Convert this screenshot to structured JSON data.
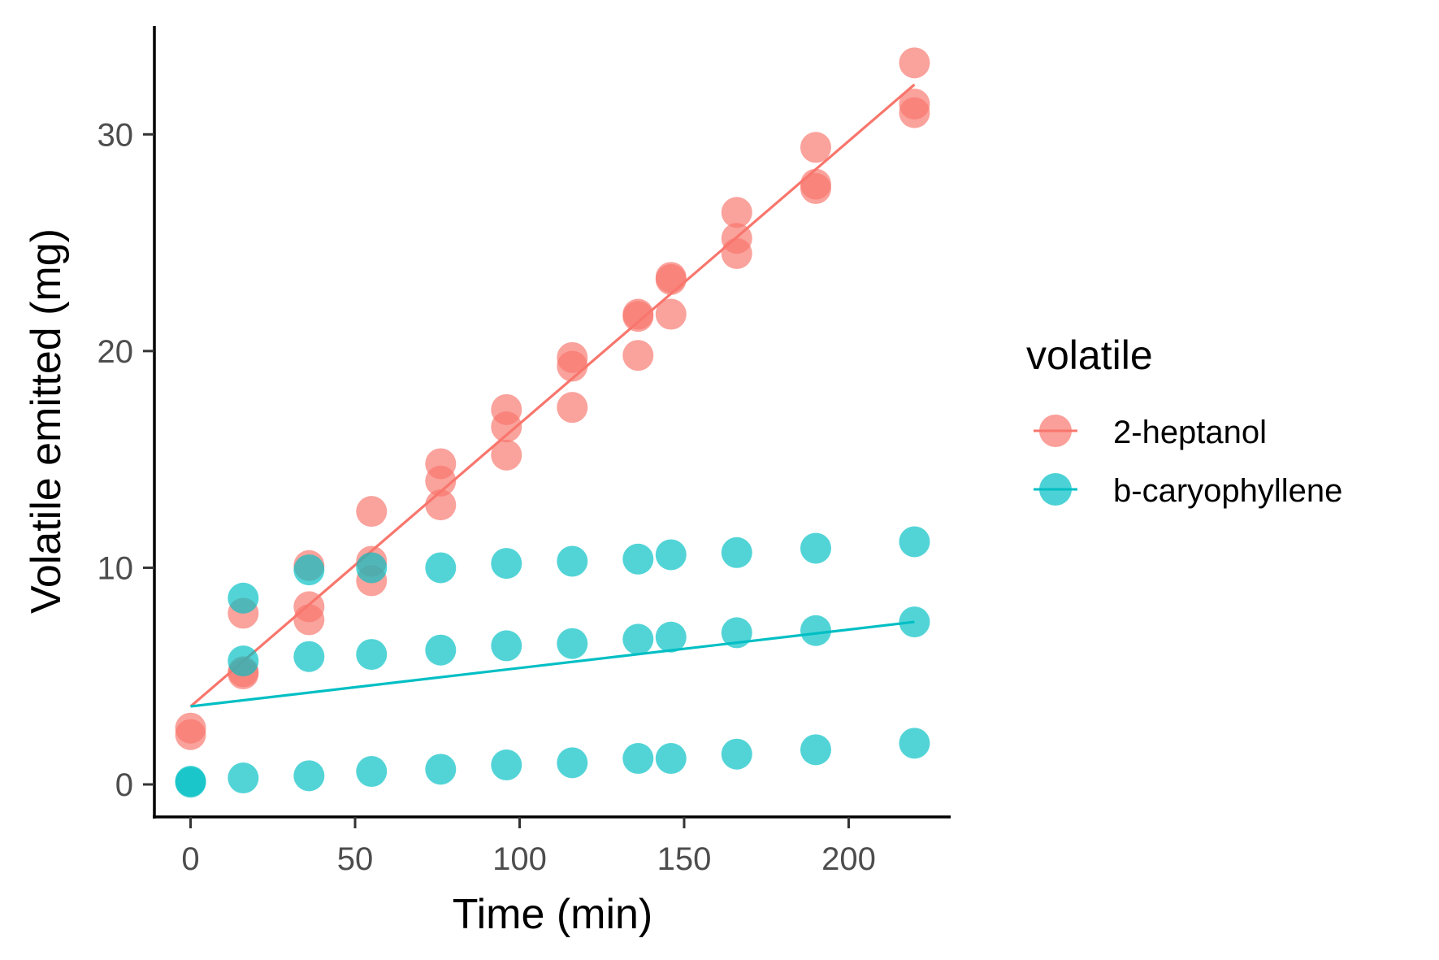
{
  "chart_data": {
    "type": "scatter",
    "xlabel": "Time (min)",
    "ylabel": "Volatile emitted (mg)",
    "xlim": [
      -11,
      231
    ],
    "ylim": [
      -1.5,
      35
    ],
    "xticks": [
      "0",
      "50",
      "100",
      "150",
      "200"
    ],
    "yticks": [
      "0",
      "10",
      "20",
      "30"
    ],
    "grid": false,
    "legend": {
      "title": "volatile",
      "placement": "right",
      "entries": [
        "2-heptanol",
        "b-caryophyllene"
      ]
    },
    "series": [
      {
        "name": "2-heptanol",
        "color": "#F8766D",
        "points": [
          [
            0,
            2.3
          ],
          [
            0,
            2.6
          ],
          [
            16,
            5.1
          ],
          [
            16,
            5.2
          ],
          [
            16,
            7.9
          ],
          [
            36,
            7.6
          ],
          [
            36,
            8.2
          ],
          [
            36,
            10.1
          ],
          [
            55,
            9.4
          ],
          [
            55,
            10.3
          ],
          [
            55,
            12.6
          ],
          [
            76,
            12.9
          ],
          [
            76,
            14.0
          ],
          [
            76,
            14.8
          ],
          [
            96,
            15.2
          ],
          [
            96,
            16.5
          ],
          [
            96,
            17.3
          ],
          [
            116,
            17.4
          ],
          [
            116,
            19.3
          ],
          [
            116,
            19.7
          ],
          [
            136,
            19.8
          ],
          [
            136,
            21.6
          ],
          [
            136,
            21.7
          ],
          [
            146,
            21.7
          ],
          [
            146,
            23.3
          ],
          [
            146,
            23.4
          ],
          [
            166,
            24.5
          ],
          [
            166,
            25.2
          ],
          [
            166,
            26.4
          ],
          [
            190,
            27.5
          ],
          [
            190,
            27.7
          ],
          [
            190,
            29.4
          ],
          [
            220,
            31.0
          ],
          [
            220,
            31.4
          ],
          [
            220,
            33.3
          ]
        ],
        "fit": [
          [
            0,
            3.6
          ],
          [
            220,
            32.3
          ]
        ]
      },
      {
        "name": "b-caryophyllene",
        "color": "#00BFC4",
        "points": [
          [
            0,
            0.1
          ],
          [
            0,
            0.15
          ],
          [
            16,
            0.3
          ],
          [
            16,
            5.7
          ],
          [
            16,
            8.6
          ],
          [
            36,
            0.4
          ],
          [
            36,
            5.9
          ],
          [
            36,
            9.9
          ],
          [
            55,
            0.6
          ],
          [
            55,
            6.0
          ],
          [
            55,
            10.0
          ],
          [
            76,
            0.7
          ],
          [
            76,
            6.2
          ],
          [
            76,
            10.0
          ],
          [
            96,
            0.9
          ],
          [
            96,
            6.4
          ],
          [
            96,
            10.2
          ],
          [
            116,
            1.0
          ],
          [
            116,
            6.5
          ],
          [
            116,
            10.3
          ],
          [
            136,
            1.2
          ],
          [
            136,
            6.7
          ],
          [
            136,
            10.4
          ],
          [
            146,
            1.2
          ],
          [
            146,
            6.8
          ],
          [
            146,
            10.6
          ],
          [
            166,
            1.4
          ],
          [
            166,
            7.0
          ],
          [
            166,
            10.7
          ],
          [
            190,
            1.6
          ],
          [
            190,
            7.1
          ],
          [
            190,
            10.9
          ],
          [
            220,
            1.9
          ],
          [
            220,
            7.5
          ],
          [
            220,
            11.2
          ]
        ],
        "fit": [
          [
            0,
            3.6
          ],
          [
            220,
            7.5
          ]
        ]
      }
    ]
  }
}
